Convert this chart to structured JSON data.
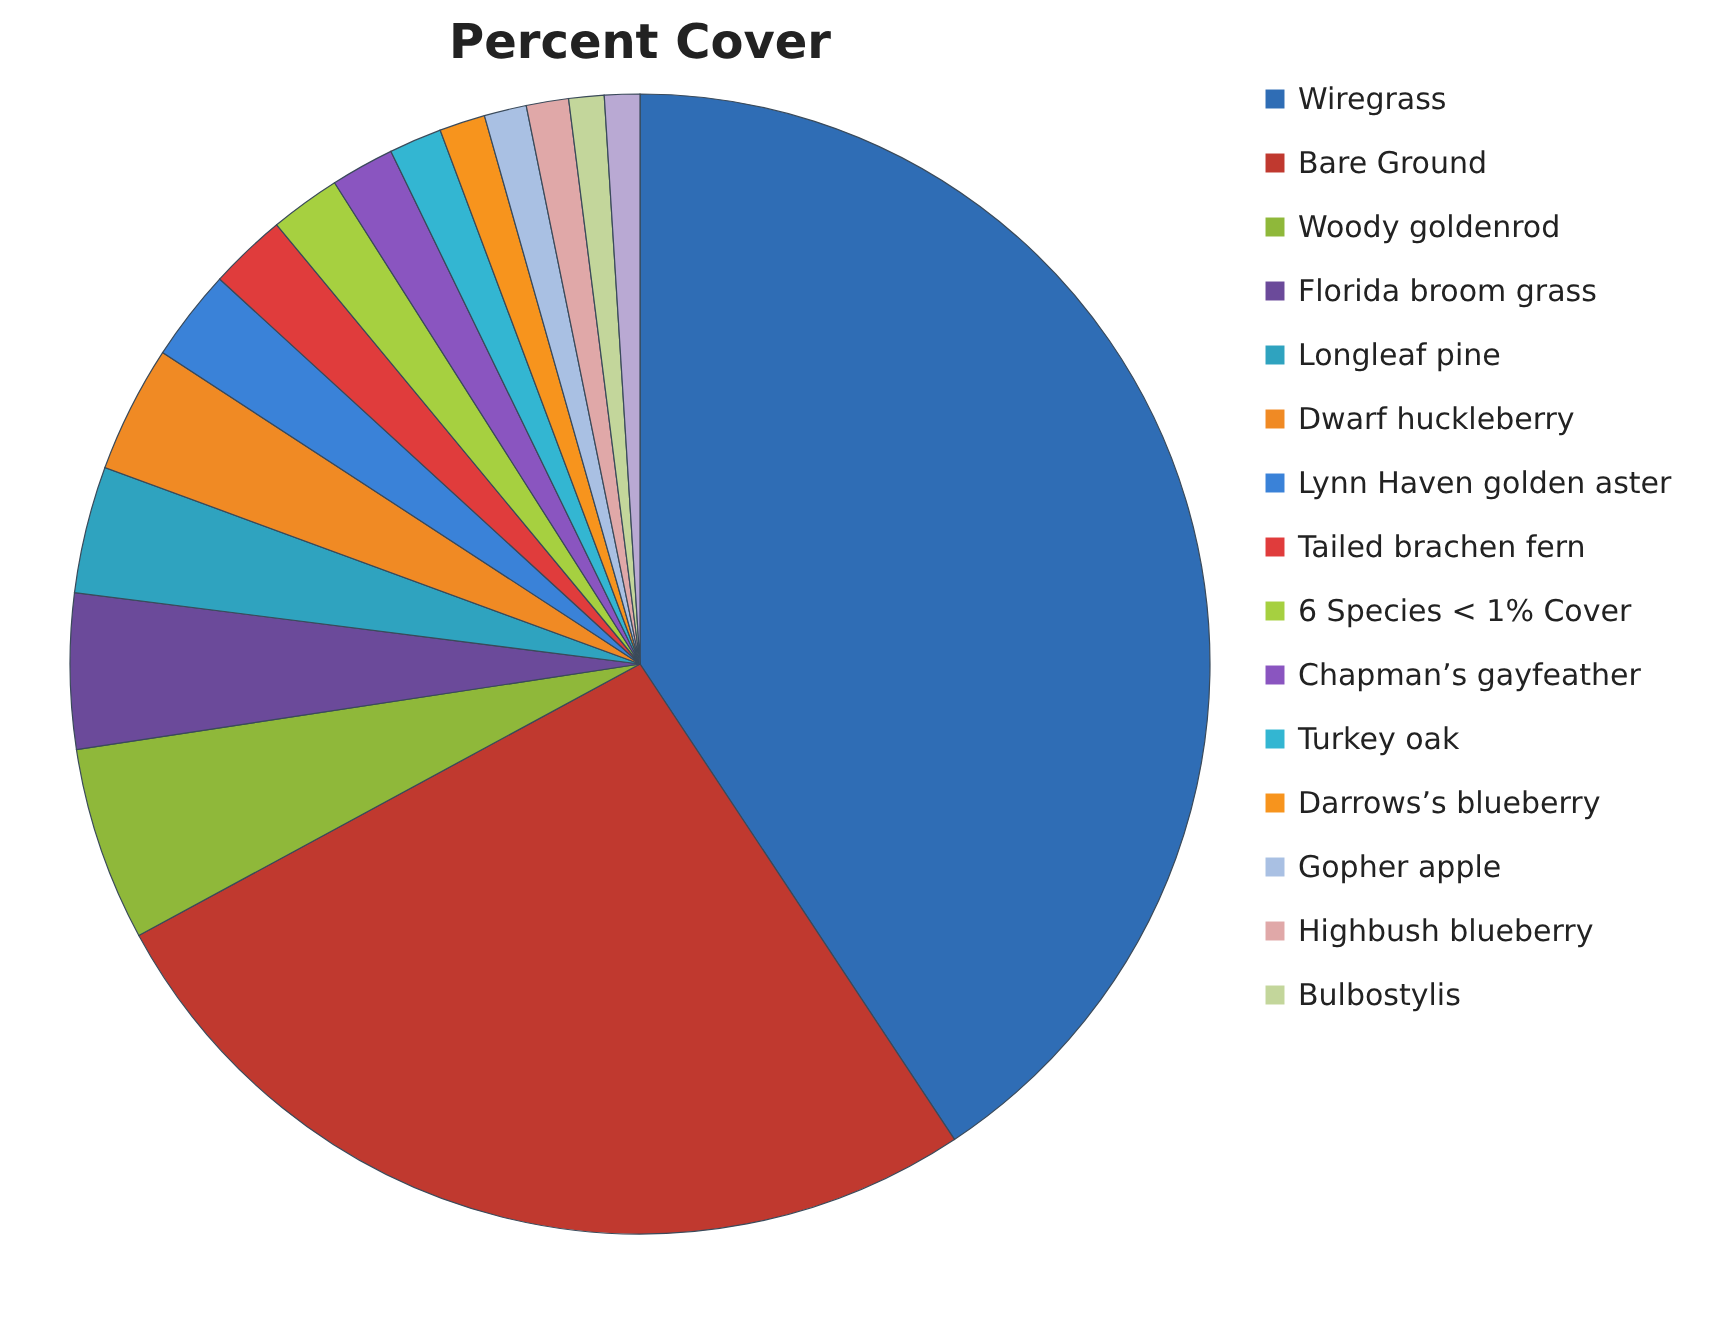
{
  "chart_data": {
    "type": "pie",
    "title": "Percent Cover",
    "categories": [
      "Wiregrass",
      "Bare Ground",
      "Woody goldenrod",
      "Florida broom grass",
      "Longleaf pine",
      "Dwarf huckleberry",
      "Lynn Haven golden aster",
      "Tailed brachen fern",
      "6 Species < 1% Cover",
      "Chapman’s gayfeather",
      "Turkey oak",
      "Darrows’s blueberry",
      "Gopher apple",
      "Highbush blueberry",
      "Bulbostylis",
      null
    ],
    "values": [
      40.7,
      26.4,
      5.5,
      4.4,
      3.6,
      3.6,
      2.6,
      2.2,
      2.0,
      1.8,
      1.5,
      1.3,
      1.2,
      1.2,
      1.0,
      1.0
    ],
    "colors": [
      "#2f6db5",
      "#c0392f",
      "#8fb83a",
      "#6b4a9a",
      "#2fa3bf",
      "#f08a24",
      "#3a82d8",
      "#e03c3c",
      "#a6d040",
      "#8a55c0",
      "#33b6d2",
      "#f7941d",
      "#a9c0e3",
      "#e0a8a8",
      "#c3d69b",
      "#b9a9d3"
    ],
    "legend": "right"
  }
}
